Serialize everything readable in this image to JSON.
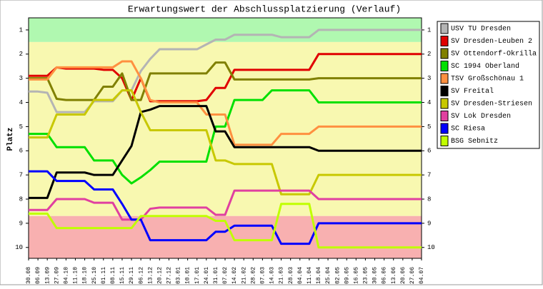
{
  "chart_data": {
    "type": "line",
    "title": "Erwartungswert der Abschlussplatzierung (Verlauf)",
    "y_label": "Platz",
    "y_inverted": true,
    "ylim": [
      0.5,
      10.45
    ],
    "yticks": [
      1,
      2,
      3,
      4,
      5,
      6,
      7,
      8,
      9,
      10
    ],
    "bands": [
      {
        "from": 0.5,
        "to": 1.5,
        "color": "#b0f8b0"
      },
      {
        "from": 1.5,
        "to": 8.7,
        "color": "#f8f8b0"
      },
      {
        "from": 8.7,
        "to": 10.45,
        "color": "#f8b0b0"
      }
    ],
    "x": [
      "30.08",
      "06.09",
      "13.09",
      "27.09",
      "04.10",
      "11.10",
      "18.10",
      "25.10",
      "01.11",
      "08.11",
      "15.11",
      "29.11",
      "06.12",
      "13.12",
      "20.12",
      "27.12",
      "03.01",
      "10.01",
      "17.01",
      "24.01",
      "31.01",
      "07.02",
      "14.02",
      "21.02",
      "28.02",
      "07.03",
      "14.03",
      "21.03",
      "28.03",
      "04.04",
      "11.04",
      "18.04",
      "25.04",
      "02.05",
      "09.05",
      "16.05",
      "23.05",
      "30.05",
      "06.06",
      "13.06",
      "20.06",
      "27.06",
      "04.07"
    ],
    "series": [
      {
        "name": "USV TU Dresden",
        "color": "#b4b4b4",
        "values": [
          3.55,
          3.55,
          3.6,
          4.4,
          4.4,
          4.4,
          4.4,
          3.95,
          3.95,
          3.95,
          3.5,
          3.5,
          2.7,
          2.2,
          1.8,
          1.8,
          1.8,
          1.8,
          1.8,
          1.6,
          1.4,
          1.4,
          1.2,
          1.2,
          1.2,
          1.2,
          1.2,
          1.3,
          1.3,
          1.3,
          1.3,
          1,
          1,
          1,
          1,
          1,
          1,
          1,
          1,
          1,
          1,
          1,
          1
        ]
      },
      {
        "name": "SV Dresden-Leuben 2",
        "color": "#e00000",
        "values": [
          2.9,
          2.9,
          2.9,
          2.55,
          2.6,
          2.6,
          2.6,
          2.6,
          2.65,
          2.65,
          3,
          3.9,
          3,
          3.95,
          3.95,
          3.95,
          3.95,
          3.95,
          3.95,
          3.9,
          3.4,
          3.4,
          2.65,
          2.65,
          2.65,
          2.65,
          2.65,
          2.65,
          2.65,
          2.65,
          2.65,
          2,
          2,
          2,
          2,
          2,
          2,
          2,
          2,
          2,
          2,
          2,
          2
        ]
      },
      {
        "name": "SV Ottendorf-Okrilla",
        "color": "#808000",
        "values": [
          3,
          3,
          3,
          3.85,
          3.9,
          3.9,
          3.9,
          3.9,
          3.35,
          3.35,
          2.8,
          3.9,
          3.9,
          2.8,
          2.8,
          2.8,
          2.8,
          2.8,
          2.8,
          2.8,
          2.35,
          2.35,
          3.05,
          3.05,
          3.05,
          3.05,
          3.05,
          3.05,
          3.05,
          3.05,
          3.05,
          3,
          3,
          3,
          3,
          3,
          3,
          3,
          3,
          3,
          3,
          3,
          3
        ]
      },
      {
        "name": "SC 1994 Oberland",
        "color": "#00e000",
        "values": [
          5.3,
          5.3,
          5.3,
          5.85,
          5.85,
          5.85,
          5.85,
          6.4,
          6.4,
          6.4,
          7,
          7.35,
          7.1,
          6.8,
          6.45,
          6.45,
          6.45,
          6.45,
          6.45,
          6.45,
          5,
          5,
          3.9,
          3.9,
          3.9,
          3.9,
          3.5,
          3.5,
          3.5,
          3.5,
          3.5,
          4,
          4,
          4,
          4,
          4,
          4,
          4,
          4,
          4,
          4,
          4,
          4
        ]
      },
      {
        "name": "TSV Großschönau 1",
        "color": "#ff9040",
        "values": [
          3.05,
          3.05,
          3.05,
          2.55,
          2.55,
          2.55,
          2.55,
          2.55,
          2.55,
          2.55,
          2.3,
          2.3,
          3,
          3.9,
          4,
          4,
          4,
          4,
          4,
          4.5,
          4.5,
          4.5,
          5.75,
          5.75,
          5.75,
          5.75,
          5.75,
          5.3,
          5.3,
          5.3,
          5.3,
          5,
          5,
          5,
          5,
          5,
          5,
          5,
          5,
          5,
          5,
          5,
          5
        ]
      },
      {
        "name": "SV Freital",
        "color": "#000000",
        "values": [
          7.95,
          7.95,
          7.95,
          6.9,
          6.9,
          6.9,
          6.9,
          7,
          7,
          7,
          6.4,
          5.8,
          4.4,
          4.3,
          4.15,
          4.15,
          4.15,
          4.15,
          4.15,
          4.15,
          5.2,
          5.2,
          5.85,
          5.85,
          5.85,
          5.85,
          5.85,
          5.85,
          5.85,
          5.85,
          5.85,
          6,
          6,
          6,
          6,
          6,
          6,
          6,
          6,
          6,
          6,
          6,
          6
        ]
      },
      {
        "name": "SV Dresden-Striesen",
        "color": "#c8c800",
        "values": [
          5.45,
          5.45,
          5.45,
          4.5,
          4.5,
          4.5,
          4.5,
          3.9,
          3.9,
          3.9,
          3.5,
          3.5,
          4.4,
          5.15,
          5.15,
          5.15,
          5.15,
          5.15,
          5.15,
          5.15,
          6.4,
          6.4,
          6.55,
          6.55,
          6.55,
          6.55,
          6.55,
          7.8,
          7.8,
          7.8,
          7.8,
          7,
          7,
          7,
          7,
          7,
          7,
          7,
          7,
          7,
          7,
          7,
          7
        ]
      },
      {
        "name": "SV Lok Dresden",
        "color": "#e040a0",
        "values": [
          8.45,
          8.45,
          8.45,
          8,
          8,
          8,
          8,
          8.15,
          8.15,
          8.15,
          8.85,
          8.85,
          8.85,
          8.4,
          8.35,
          8.35,
          8.35,
          8.35,
          8.35,
          8.35,
          8.65,
          8.65,
          7.65,
          7.65,
          7.65,
          7.65,
          7.65,
          7.65,
          7.65,
          7.65,
          7.65,
          8,
          8,
          8,
          8,
          8,
          8,
          8,
          8,
          8,
          8,
          8,
          8
        ]
      },
      {
        "name": "SC Riesa",
        "color": "#0000ff",
        "values": [
          6.85,
          6.85,
          6.85,
          7.25,
          7.25,
          7.25,
          7.25,
          7.6,
          7.6,
          7.6,
          8.2,
          8.85,
          8.85,
          9.7,
          9.7,
          9.7,
          9.7,
          9.7,
          9.7,
          9.7,
          9.35,
          9.35,
          9.1,
          9.1,
          9.1,
          9.1,
          9.1,
          9.85,
          9.85,
          9.85,
          9.85,
          9,
          9,
          9,
          9,
          9,
          9,
          9,
          9,
          9,
          9,
          9,
          9
        ]
      },
      {
        "name": "BSG Sebnitz",
        "color": "#c0ff00",
        "values": [
          8.6,
          8.6,
          8.6,
          9.2,
          9.2,
          9.2,
          9.2,
          9.2,
          9.2,
          9.2,
          9.2,
          9.2,
          8.7,
          8.7,
          8.7,
          8.7,
          8.7,
          8.7,
          8.7,
          8.7,
          8.9,
          8.9,
          9.7,
          9.7,
          9.7,
          9.7,
          9.7,
          8.2,
          8.2,
          8.2,
          8.2,
          10,
          10,
          10,
          10,
          10,
          10,
          10,
          10,
          10,
          10,
          10,
          10
        ]
      }
    ]
  }
}
